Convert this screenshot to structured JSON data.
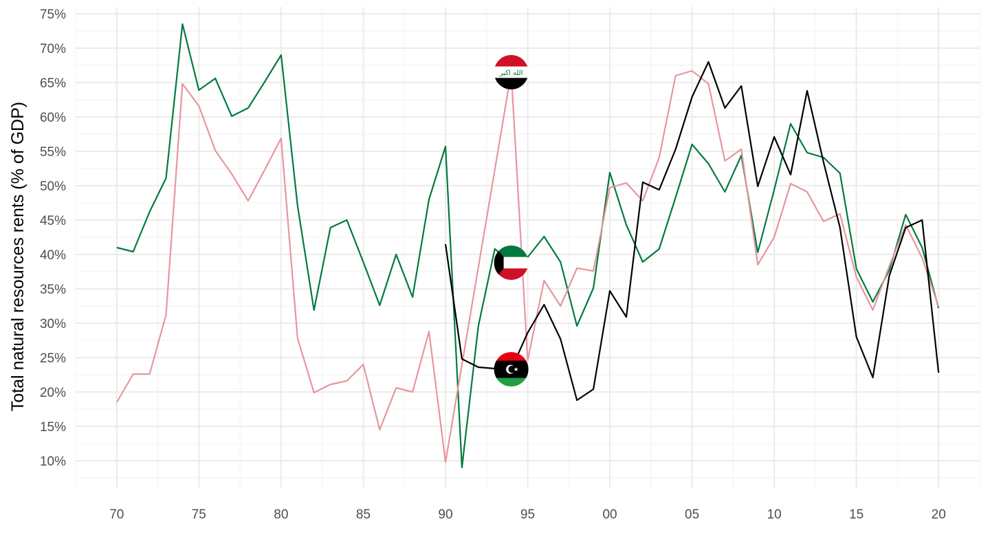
{
  "chart_data": {
    "type": "line",
    "ylabel": "Total natural resources rents (% of GDP)",
    "xlabel": "",
    "xlim": [
      1967.5,
      2022.5
    ],
    "ylim": [
      6.0,
      76.0
    ],
    "x_ticks": [
      {
        "value": 1970,
        "label": "70"
      },
      {
        "value": 1975,
        "label": "75"
      },
      {
        "value": 1980,
        "label": "80"
      },
      {
        "value": 1985,
        "label": "85"
      },
      {
        "value": 1990,
        "label": "90"
      },
      {
        "value": 1995,
        "label": "95"
      },
      {
        "value": 2000,
        "label": "00"
      },
      {
        "value": 2005,
        "label": "05"
      },
      {
        "value": 2010,
        "label": "10"
      },
      {
        "value": 2015,
        "label": "15"
      },
      {
        "value": 2020,
        "label": "20"
      }
    ],
    "y_ticks": [
      {
        "value": 10,
        "label": "10%"
      },
      {
        "value": 15,
        "label": "15%"
      },
      {
        "value": 20,
        "label": "20%"
      },
      {
        "value": 25,
        "label": "25%"
      },
      {
        "value": 30,
        "label": "30%"
      },
      {
        "value": 35,
        "label": "35%"
      },
      {
        "value": 40,
        "label": "40%"
      },
      {
        "value": 45,
        "label": "45%"
      },
      {
        "value": 50,
        "label": "50%"
      },
      {
        "value": 55,
        "label": "55%"
      },
      {
        "value": 60,
        "label": "60%"
      },
      {
        "value": 65,
        "label": "65%"
      },
      {
        "value": 70,
        "label": "70%"
      },
      {
        "value": 75,
        "label": "75%"
      }
    ],
    "grid": true,
    "legend": "none",
    "series": [
      {
        "flag": "kuwait-flag",
        "color": "#007a3d",
        "points": [
          [
            1970,
            41.0
          ],
          [
            1971,
            40.4
          ],
          [
            1972,
            46.2
          ],
          [
            1973,
            51.1
          ],
          [
            1974,
            73.5
          ],
          [
            1975,
            63.9
          ],
          [
            1976,
            65.6
          ],
          [
            1977,
            60.1
          ],
          [
            1978,
            61.3
          ],
          [
            1979,
            65.1
          ],
          [
            1980,
            69.0
          ],
          [
            1981,
            47.1
          ],
          [
            1982,
            31.9
          ],
          [
            1983,
            43.9
          ],
          [
            1984,
            45.0
          ],
          [
            1985,
            38.9
          ],
          [
            1986,
            32.6
          ],
          [
            1987,
            40.0
          ],
          [
            1988,
            33.8
          ],
          [
            1989,
            48.0
          ],
          [
            1990,
            55.7
          ],
          [
            1991,
            9.0
          ],
          [
            1992,
            29.6
          ],
          [
            1993,
            40.8
          ],
          [
            1994,
            38.8
          ],
          [
            1995,
            39.6
          ],
          [
            1996,
            42.6
          ],
          [
            1997,
            38.9
          ],
          [
            1998,
            29.6
          ],
          [
            1999,
            35.1
          ],
          [
            2000,
            51.9
          ],
          [
            2001,
            44.3
          ],
          [
            2002,
            38.9
          ],
          [
            2003,
            40.8
          ],
          [
            2004,
            48.3
          ],
          [
            2005,
            56.0
          ],
          [
            2006,
            53.2
          ],
          [
            2007,
            49.1
          ],
          [
            2008,
            54.4
          ],
          [
            2009,
            40.3
          ],
          [
            2010,
            49.4
          ],
          [
            2011,
            59.0
          ],
          [
            2012,
            54.8
          ],
          [
            2013,
            54.1
          ],
          [
            2014,
            51.8
          ],
          [
            2015,
            37.9
          ],
          [
            2016,
            33.1
          ],
          [
            2017,
            37.7
          ],
          [
            2018,
            45.8
          ],
          [
            2019,
            41.0
          ],
          [
            2020,
            32.2
          ]
        ]
      },
      {
        "flag": "iraq-flag",
        "color": "#e8959d",
        "points": [
          [
            1970,
            18.5
          ],
          [
            1971,
            22.6
          ],
          [
            1972,
            22.6
          ],
          [
            1973,
            31.2
          ],
          [
            1974,
            64.8
          ],
          [
            1975,
            61.6
          ],
          [
            1976,
            55.1
          ],
          [
            1977,
            51.7
          ],
          [
            1978,
            47.8
          ],
          [
            1979,
            52.3
          ],
          [
            1980,
            56.9
          ],
          [
            1981,
            27.8
          ],
          [
            1982,
            19.9
          ],
          [
            1983,
            21.1
          ],
          [
            1984,
            21.6
          ],
          [
            1985,
            24.0
          ],
          [
            1986,
            14.5
          ],
          [
            1987,
            20.6
          ],
          [
            1988,
            20.0
          ],
          [
            1989,
            28.8
          ],
          [
            1990,
            9.8
          ],
          [
            1994,
            66.5
          ],
          [
            1995,
            24.6
          ],
          [
            1996,
            36.2
          ],
          [
            1997,
            32.5
          ],
          [
            1998,
            38.0
          ],
          [
            1999,
            37.6
          ],
          [
            2000,
            49.7
          ],
          [
            2001,
            50.4
          ],
          [
            2002,
            47.8
          ],
          [
            2003,
            54.1
          ],
          [
            2004,
            66.0
          ],
          [
            2005,
            66.7
          ],
          [
            2006,
            64.8
          ],
          [
            2007,
            53.6
          ],
          [
            2008,
            55.3
          ],
          [
            2009,
            38.5
          ],
          [
            2010,
            42.5
          ],
          [
            2011,
            50.3
          ],
          [
            2012,
            49.1
          ],
          [
            2013,
            44.8
          ],
          [
            2014,
            45.9
          ],
          [
            2015,
            36.7
          ],
          [
            2016,
            31.9
          ],
          [
            2017,
            38.3
          ],
          [
            2018,
            44.3
          ],
          [
            2019,
            39.5
          ],
          [
            2020,
            32.4
          ]
        ]
      },
      {
        "flag": "libya-flag",
        "color": "#000000",
        "points": [
          [
            1990,
            41.5
          ],
          [
            1991,
            24.8
          ],
          [
            1992,
            23.6
          ],
          [
            1993,
            23.4
          ],
          [
            1994,
            23.3
          ],
          [
            1995,
            28.6
          ],
          [
            1996,
            32.7
          ],
          [
            1997,
            27.7
          ],
          [
            1998,
            18.8
          ],
          [
            1999,
            20.4
          ],
          [
            2000,
            34.7
          ],
          [
            2001,
            30.9
          ],
          [
            2002,
            50.5
          ],
          [
            2003,
            49.4
          ],
          [
            2004,
            55.3
          ],
          [
            2005,
            62.9
          ],
          [
            2006,
            68.0
          ],
          [
            2007,
            61.3
          ],
          [
            2008,
            64.5
          ],
          [
            2009,
            49.9
          ],
          [
            2010,
            57.1
          ],
          [
            2011,
            51.6
          ],
          [
            2012,
            63.8
          ],
          [
            2013,
            53.4
          ],
          [
            2014,
            43.9
          ],
          [
            2015,
            28.0
          ],
          [
            2016,
            22.1
          ],
          [
            2017,
            36.9
          ],
          [
            2018,
            43.9
          ],
          [
            2019,
            45.0
          ],
          [
            2020,
            22.8
          ]
        ]
      }
    ],
    "flag_markers": [
      {
        "name": "iraq-flag",
        "x": 1994,
        "y": 66.5
      },
      {
        "name": "kuwait-flag",
        "x": 1994,
        "y": 38.8
      },
      {
        "name": "libya-flag",
        "x": 1994,
        "y": 23.3
      }
    ]
  },
  "flags": {
    "iraq": {
      "stripes": [
        "#ce1126",
        "#ffffff",
        "#000000"
      ],
      "script_color": "#007a3d",
      "script": "الله اكبر"
    },
    "kuwait": {
      "stripes": [
        "#007a3d",
        "#ffffff",
        "#ce1126"
      ],
      "hoist": "#000000"
    },
    "libya": {
      "stripes": [
        "#e70013",
        "#000000",
        "#239e46"
      ],
      "emblem_color": "#ffffff"
    }
  }
}
